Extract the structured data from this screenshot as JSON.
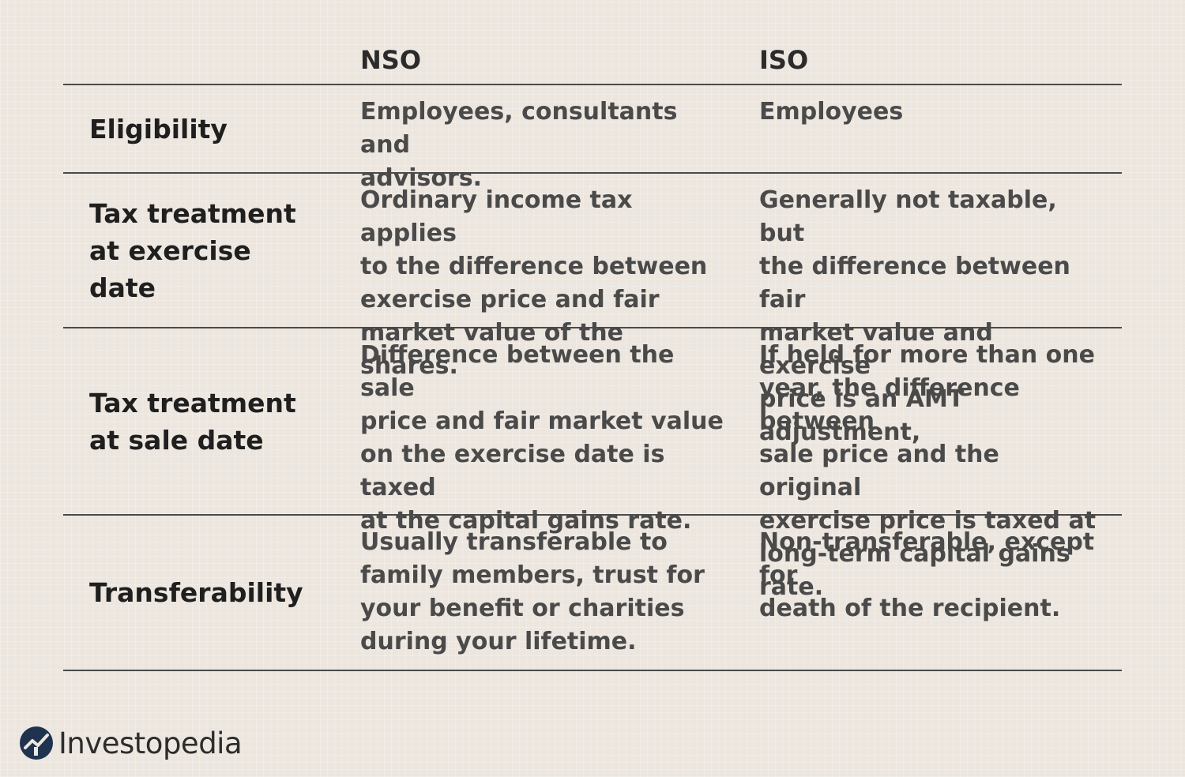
{
  "header": {
    "nso": "NSO",
    "iso": "ISO"
  },
  "rows": [
    {
      "label": "Eligibility",
      "nso": "Employees, consultants and\nadvisors.",
      "iso": "Employees"
    },
    {
      "label": "Tax treatment\nat exercise date",
      "nso": "Ordinary income tax applies\nto the difference between\nexercise price and fair\nmarket value of the shares.",
      "iso": "Generally not taxable, but\nthe difference between fair\nmarket value and exercise\nprice is an AMT adjustment,"
    },
    {
      "label": "Tax treatment\nat sale date",
      "nso": "Difference between the sale\nprice and fair market value\non the exercise date is taxed\nat the capital gains rate.",
      "iso": "If held for more than one\nyear, the difference between\nsale price and the original\nexercise price is taxed at\nlong-term capital gains rate."
    },
    {
      "label": "Transferability",
      "nso": "Usually transferable to\nfamily members, trust for\nyour benefit or charities\nduring your lifetime.",
      "iso": "Non-transferable, except for\ndeath of the recipient."
    }
  ],
  "brand": {
    "name": "Investopedia",
    "logo_color": "#1f3350",
    "accent": "#ece6df"
  }
}
